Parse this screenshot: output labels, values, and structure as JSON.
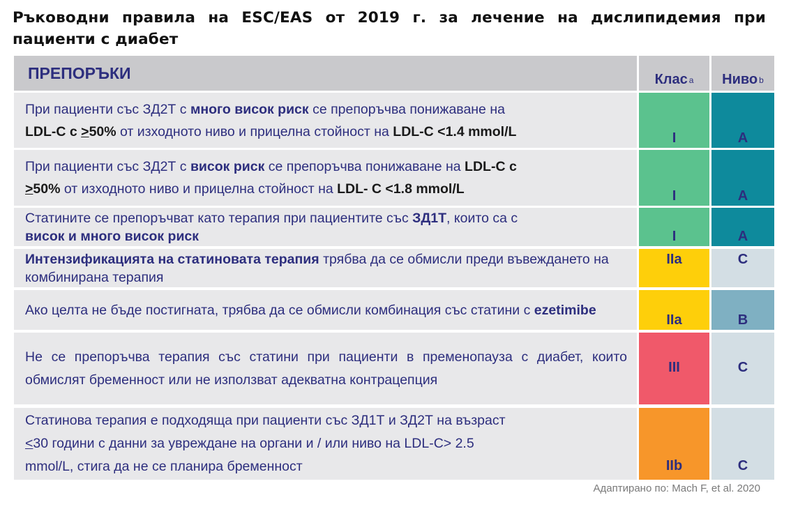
{
  "title": "Ръководни правила на ESC/EAS от 2019 г. за лечение на дислипидемия при пациенти с диабет",
  "header": {
    "recommendations": "ПРЕПОРЪКИ",
    "class": "Клас",
    "class_sup": "a",
    "level": "Ниво",
    "level_sup": "b"
  },
  "rows": [
    {
      "t1": "При пациенти със ЗД2Т с ",
      "b1": "много висок риск",
      "t2": " се препоръчва понижаване на",
      "d1": "LDL-C с ",
      "ge": ">",
      "d2": "50%",
      "t3": " от изходното ниво и прицелна стойност на ",
      "d3": "LDL-C <1.4 mmol/L",
      "class": "I",
      "level": "A",
      "class_color": "#5bc28e",
      "level_color": "#0e8a9c"
    },
    {
      "t1": "При пациенти със ЗД2Т с ",
      "b1": "висок риск",
      "t2": " се препоръчва понижаване на ",
      "d1": "LDL-C с",
      "ge": ">",
      "d2": "50%",
      "t3": " от изходното ниво и прицелна стойност на  ",
      "d3": "LDL- C <1.8 mmol/L",
      "class": "I",
      "level": "A",
      "class_color": "#5bc28e",
      "level_color": "#0e8a9c"
    },
    {
      "t1": "Статините се препоръчват като терапия при пациентите със ",
      "b1": "ЗД1Т",
      "t2": ", които са с",
      "b2": "висок и много висок риск",
      "class": "I",
      "level": "A",
      "class_color": "#5bc28e",
      "level_color": "#0e8a9c"
    },
    {
      "b1": "Интензификацията на статиновата терапия",
      "t1": " трябва да се обмисли преди въвеждането на комбинирана терапия",
      "class": "IIa",
      "level": "C",
      "class_color": "#fecf0a",
      "level_color": "#d3dee4"
    },
    {
      "t1": "Ако целта не бъде постигната, трябва да се обмисли комбинация със статини с ",
      "b1": "ezetimibe",
      "class": "IIa",
      "level": "B",
      "class_color": "#fecf0a",
      "level_color": "#7fb0c2"
    },
    {
      "t1": "Не се препоръчва терапия със статини при пациенти в пременопауза с диабет, които обмислят бременност или не използват адекватна контрацепция",
      "class": "III",
      "level": "C",
      "class_color": "#f0596a",
      "level_color": "#d3dee4"
    },
    {
      "t1": "Статинова терапия е подходяща при пациенти със ЗД1Т и ЗД2Т на възраст",
      "le": "<",
      "t2": "30 години с данни за увреждане на органи и / или ниво на LDL-C> 2.5",
      "t3": "mmol/L, стига да не се планира бременност",
      "class": "IIb",
      "level": "C",
      "class_color": "#f7962a",
      "level_color": "#d3dee4"
    }
  ],
  "source": "Адаптирано по: Mach F, et al. 2020"
}
